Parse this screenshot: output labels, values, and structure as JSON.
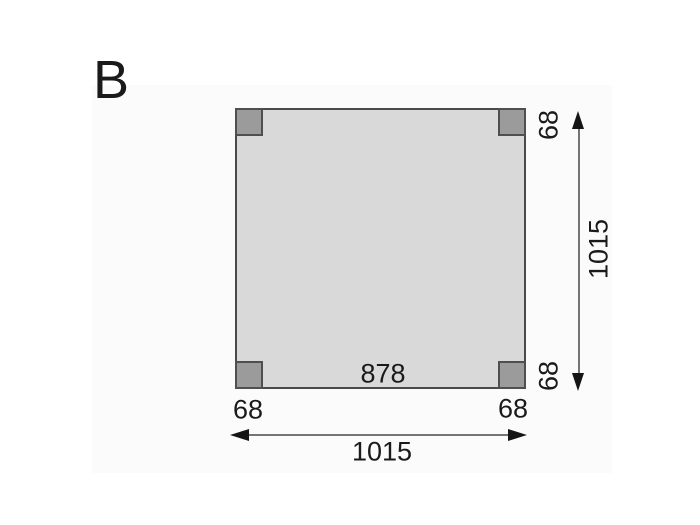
{
  "plan": {
    "label": "B"
  },
  "dimensions": {
    "inner_width": "878",
    "overall_width": "1015",
    "overall_height": "1015",
    "post_width_left": "68",
    "post_width_right": "68",
    "post_height_top": "68",
    "post_height_bottom": "68"
  },
  "colors": {
    "background": "#ffffff",
    "panel_fill": "#d9d9d9",
    "panel_outline": "#4a4a4a",
    "post_fill": "#9b9b9b",
    "post_outline": "#4f4f4f",
    "dimension_line": "#757575",
    "arrow": "#151515",
    "text": "#1a1a1a"
  }
}
